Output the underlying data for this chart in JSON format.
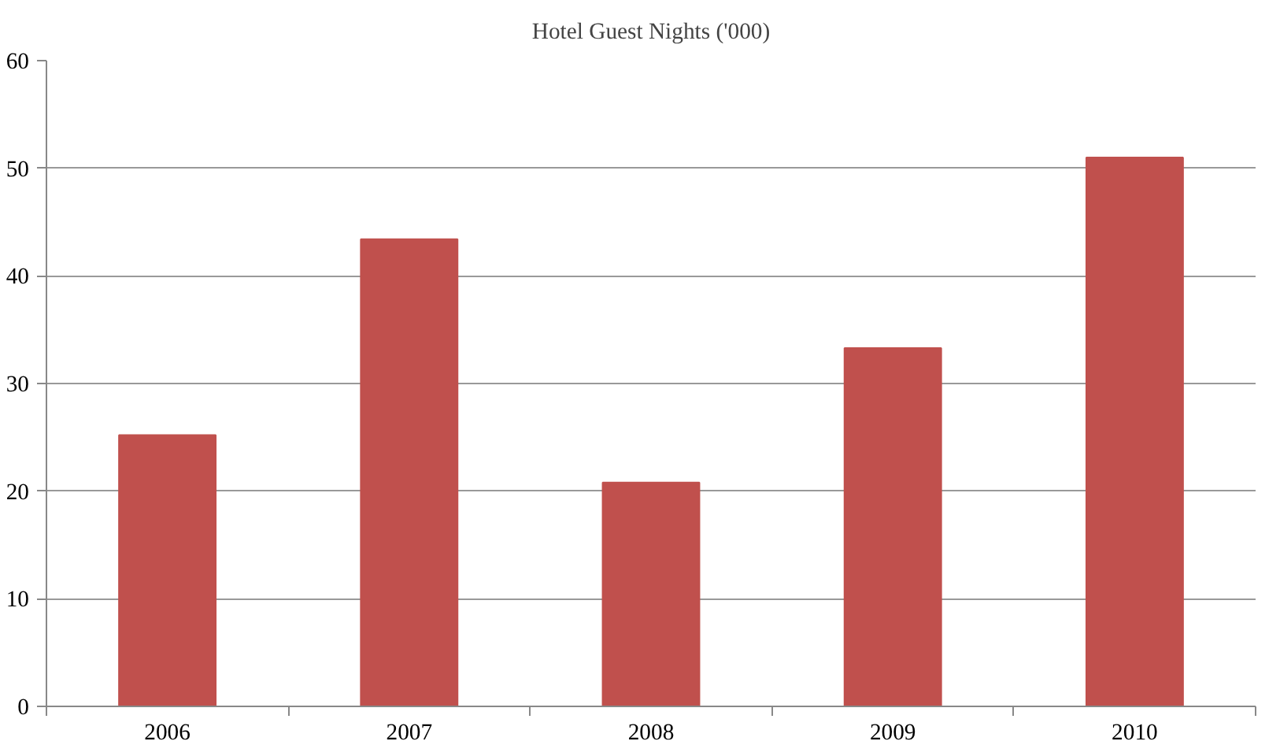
{
  "chart_data": {
    "type": "bar",
    "title": "Hotel Guest Nights ('000)",
    "categories": [
      "2006",
      "2007",
      "2008",
      "2009",
      "2010"
    ],
    "values": [
      25.2,
      43.4,
      20.8,
      33.3,
      51.0
    ],
    "color": "#c0504d",
    "ylim": [
      0,
      60
    ],
    "yticks": [
      0,
      10,
      20,
      30,
      40,
      50,
      60
    ],
    "grid": "y"
  }
}
